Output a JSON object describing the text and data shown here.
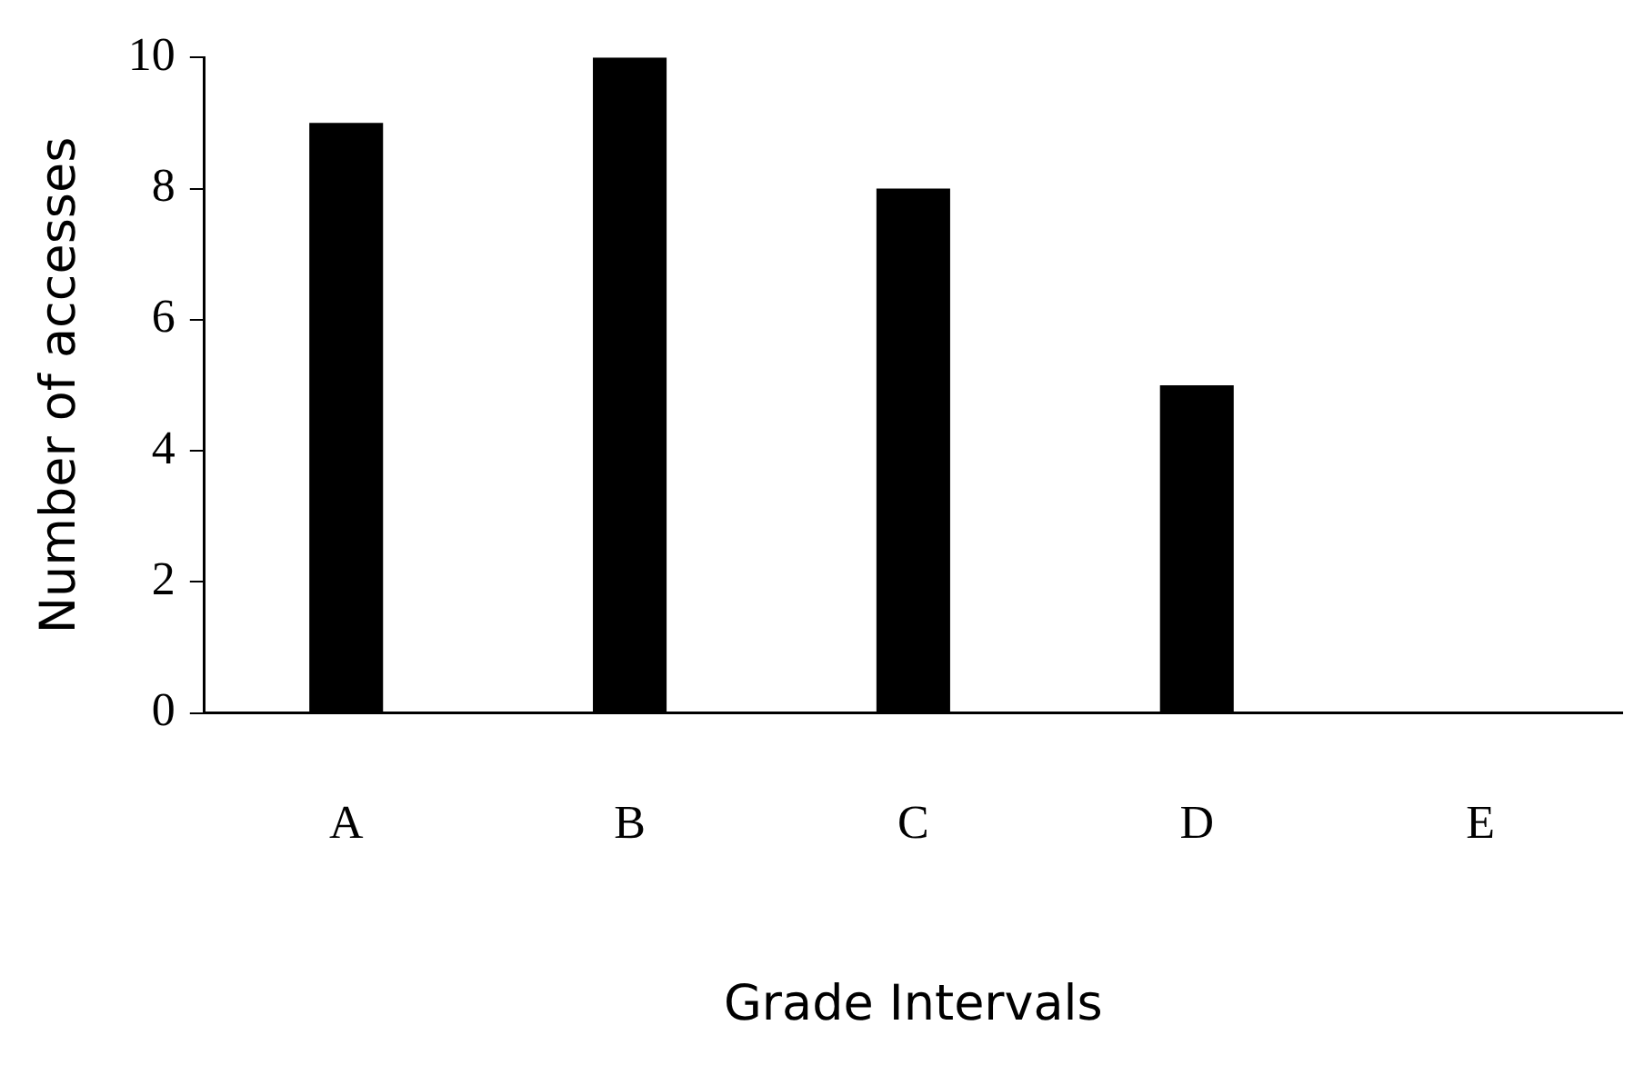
{
  "chart_data": {
    "type": "bar",
    "xlabel": "Grade Intervals",
    "ylabel": "Number of accesses",
    "categories": [
      "A",
      "B",
      "C",
      "D",
      "E"
    ],
    "values": [
      9,
      10,
      8,
      5,
      0
    ],
    "color": "#000000",
    "ylim": [
      0,
      10
    ],
    "yticks": [
      0,
      2,
      4,
      6,
      8,
      10
    ],
    "grid": false,
    "legend": false
  }
}
